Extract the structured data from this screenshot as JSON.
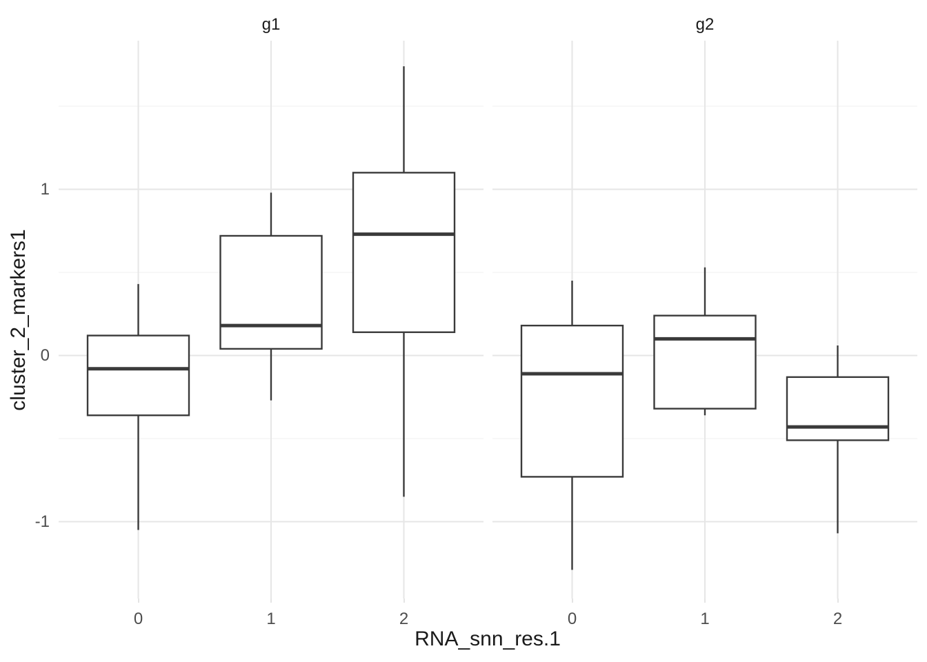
{
  "chart_data": {
    "type": "boxplot",
    "title": "",
    "xlabel": "RNA_snn_res.1",
    "ylabel": "cluster_2_markers1",
    "ylim": [
      -1.46,
      1.89
    ],
    "grid": "major+minor",
    "legend_position": "none",
    "y_major_ticks": [
      {
        "value": 1,
        "label": "1"
      },
      {
        "value": 0,
        "label": "0"
      },
      {
        "value": -1,
        "label": "-1"
      }
    ],
    "y_minor_ticks": [
      1.5,
      0.5,
      -0.5
    ],
    "categories": [
      "0",
      "1",
      "2"
    ],
    "facets": [
      {
        "label": "g1",
        "boxes": [
          {
            "category": "0",
            "whisker_low": -1.05,
            "q1": -0.36,
            "median": -0.08,
            "q3": 0.12,
            "whisker_high": 0.43
          },
          {
            "category": "1",
            "whisker_low": -0.27,
            "q1": 0.04,
            "median": 0.18,
            "q3": 0.72,
            "whisker_high": 0.98
          },
          {
            "category": "2",
            "whisker_low": -0.85,
            "q1": 0.14,
            "median": 0.73,
            "q3": 1.1,
            "whisker_high": 1.74
          }
        ]
      },
      {
        "label": "g2",
        "boxes": [
          {
            "category": "0",
            "whisker_low": -1.29,
            "q1": -0.73,
            "median": -0.11,
            "q3": 0.18,
            "whisker_high": 0.45
          },
          {
            "category": "1",
            "whisker_low": -0.36,
            "q1": -0.32,
            "median": 0.1,
            "q3": 0.24,
            "whisker_high": 0.53
          },
          {
            "category": "2",
            "whisker_low": -1.07,
            "q1": -0.51,
            "median": -0.43,
            "q3": -0.13,
            "whisker_high": 0.06
          }
        ]
      }
    ],
    "colors": {
      "box_stroke": "#3A3A3A",
      "box_fill": "#FFFFFF",
      "grid_major": "#E6E6E6",
      "grid_minor": "#F2F2F2",
      "tick_label": "#4D4D4D",
      "title_text": "#1A1A1A",
      "background": "#FFFFFF"
    }
  }
}
